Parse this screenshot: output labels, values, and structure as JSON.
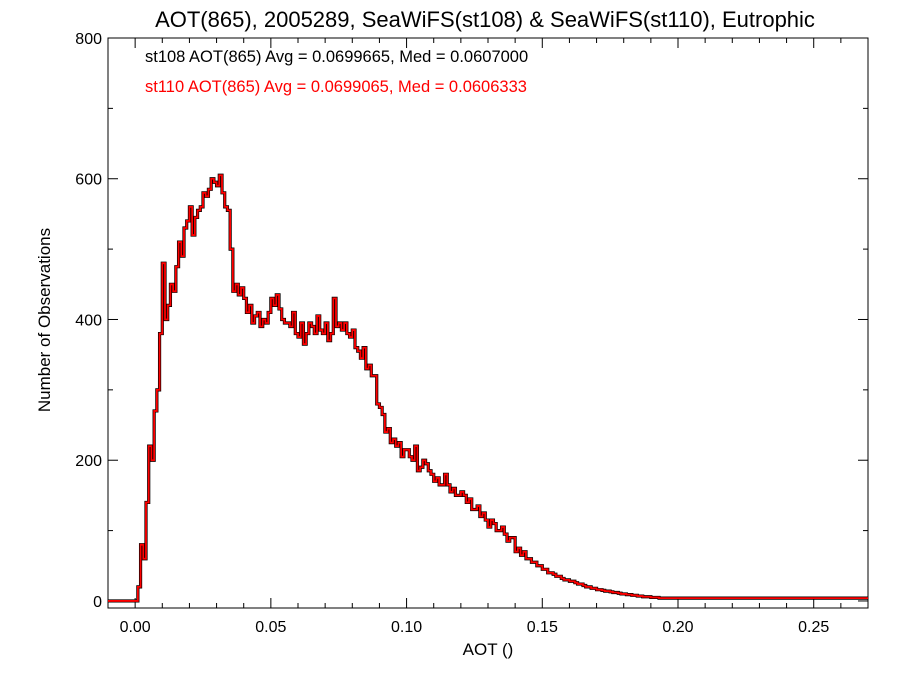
{
  "chart_data": {
    "type": "line",
    "title": "AOT(865), 2005289, SeaWiFS(st108) & SeaWiFS(st110), Eutrophic",
    "xlabel": "AOT ()",
    "ylabel": "Number of Observations",
    "xlim": [
      -0.01,
      0.27
    ],
    "ylim": [
      -10,
      800
    ],
    "x_ticks": [
      0.0,
      0.05,
      0.1,
      0.15,
      0.2,
      0.25
    ],
    "x_tick_labels": [
      "0.00",
      "0.05",
      "0.10",
      "0.15",
      "0.20",
      "0.25"
    ],
    "y_ticks": [
      0,
      200,
      400,
      600,
      800
    ],
    "y_tick_labels": [
      "0",
      "200",
      "400",
      "600",
      "800"
    ],
    "step_style": "histogram",
    "bin_width": 0.001,
    "x": [
      -0.01,
      -0.009,
      -0.008,
      -0.007,
      -0.006,
      -0.005,
      -0.004,
      -0.003,
      -0.002,
      -0.001,
      0.0,
      0.001,
      0.002,
      0.003,
      0.004,
      0.005,
      0.006,
      0.007,
      0.008,
      0.009,
      0.01,
      0.011,
      0.012,
      0.013,
      0.014,
      0.015,
      0.016,
      0.017,
      0.018,
      0.019,
      0.02,
      0.021,
      0.022,
      0.023,
      0.024,
      0.025,
      0.026,
      0.027,
      0.028,
      0.029,
      0.03,
      0.031,
      0.032,
      0.033,
      0.034,
      0.035,
      0.036,
      0.037,
      0.038,
      0.039,
      0.04,
      0.041,
      0.042,
      0.043,
      0.044,
      0.045,
      0.046,
      0.047,
      0.048,
      0.049,
      0.05,
      0.051,
      0.052,
      0.053,
      0.054,
      0.055,
      0.056,
      0.057,
      0.058,
      0.059,
      0.06,
      0.061,
      0.062,
      0.063,
      0.064,
      0.065,
      0.066,
      0.067,
      0.068,
      0.069,
      0.07,
      0.071,
      0.072,
      0.073,
      0.074,
      0.075,
      0.076,
      0.077,
      0.078,
      0.079,
      0.08,
      0.081,
      0.082,
      0.083,
      0.084,
      0.085,
      0.086,
      0.087,
      0.088,
      0.089,
      0.09,
      0.091,
      0.092,
      0.093,
      0.094,
      0.095,
      0.096,
      0.097,
      0.098,
      0.099,
      0.1,
      0.101,
      0.102,
      0.103,
      0.104,
      0.105,
      0.106,
      0.107,
      0.108,
      0.109,
      0.11,
      0.111,
      0.112,
      0.113,
      0.114,
      0.115,
      0.116,
      0.117,
      0.118,
      0.119,
      0.12,
      0.121,
      0.122,
      0.123,
      0.124,
      0.125,
      0.126,
      0.127,
      0.128,
      0.129,
      0.13,
      0.131,
      0.132,
      0.133,
      0.134,
      0.135,
      0.136,
      0.137,
      0.138,
      0.139,
      0.14,
      0.141,
      0.142,
      0.143,
      0.144,
      0.145,
      0.146,
      0.147,
      0.148,
      0.149,
      0.15,
      0.151,
      0.152,
      0.153,
      0.154,
      0.155,
      0.156,
      0.157,
      0.158,
      0.159,
      0.16,
      0.161,
      0.162,
      0.163,
      0.164,
      0.165,
      0.166,
      0.167,
      0.168,
      0.169,
      0.17,
      0.171,
      0.172,
      0.173,
      0.174,
      0.175,
      0.176,
      0.177,
      0.178,
      0.179,
      0.18,
      0.181,
      0.182,
      0.183,
      0.184,
      0.185,
      0.186,
      0.187,
      0.188,
      0.189,
      0.19,
      0.191,
      0.192,
      0.193,
      0.194,
      0.195,
      0.196,
      0.197,
      0.198,
      0.199,
      0.2,
      0.201,
      0.202,
      0.203,
      0.204,
      0.205,
      0.206,
      0.207,
      0.208,
      0.209,
      0.21,
      0.211,
      0.212,
      0.213,
      0.214,
      0.215,
      0.216,
      0.217,
      0.218,
      0.219,
      0.22,
      0.221,
      0.222,
      0.223,
      0.224,
      0.225,
      0.226,
      0.227,
      0.228,
      0.229,
      0.23,
      0.231,
      0.232,
      0.233,
      0.234,
      0.235,
      0.236,
      0.237,
      0.238,
      0.239,
      0.24,
      0.241,
      0.242,
      0.243,
      0.244,
      0.245,
      0.246,
      0.247,
      0.248,
      0.249,
      0.25,
      0.251,
      0.252,
      0.253,
      0.254,
      0.255,
      0.256,
      0.257,
      0.258,
      0.259,
      0.26,
      0.261,
      0.262,
      0.263,
      0.264,
      0.265,
      0.266,
      0.267,
      0.268,
      0.269
    ],
    "series": [
      {
        "name": "st108",
        "color": "#000000",
        "values": [
          0,
          0,
          0,
          0,
          0,
          0,
          0,
          0,
          0,
          0,
          0,
          20,
          80,
          60,
          140,
          220,
          200,
          270,
          300,
          380,
          480,
          400,
          420,
          450,
          440,
          475,
          510,
          490,
          530,
          540,
          560,
          520,
          545,
          555,
          560,
          580,
          575,
          585,
          600,
          595,
          590,
          605,
          580,
          560,
          555,
          500,
          440,
          450,
          435,
          445,
          430,
          410,
          420,
          395,
          405,
          410,
          390,
          400,
          395,
          410,
          430,
          420,
          435,
          415,
          400,
          395,
          395,
          390,
          410,
          380,
          375,
          395,
          365,
          380,
          395,
          390,
          380,
          405,
          385,
          380,
          395,
          370,
          380,
          430,
          390,
          395,
          385,
          395,
          380,
          375,
          385,
          360,
          355,
          345,
          360,
          330,
          335,
          320,
          320,
          280,
          275,
          265,
          240,
          245,
          225,
          230,
          220,
          225,
          205,
          215,
          215,
          205,
          200,
          220,
          185,
          190,
          200,
          195,
          185,
          180,
          170,
          175,
          165,
          165,
          180,
          165,
          155,
          160,
          150,
          150,
          155,
          150,
          140,
          145,
          130,
          130,
          135,
          120,
          125,
          115,
          105,
          115,
          110,
          100,
          100,
          105,
          95,
          85,
          90,
          90,
          70,
          75,
          65,
          70,
          60,
          60,
          55,
          55,
          50,
          50,
          45,
          45,
          40,
          40,
          38,
          35,
          35,
          32,
          30,
          30,
          28,
          28,
          26,
          24,
          24,
          22,
          20,
          20,
          18,
          18,
          16,
          16,
          15,
          14,
          14,
          13,
          12,
          12,
          11,
          10,
          10,
          9,
          9,
          8,
          8,
          7,
          7,
          6,
          6,
          6,
          5,
          5,
          5,
          4,
          4,
          4,
          4,
          4,
          4,
          4,
          4,
          4,
          4,
          4,
          4,
          4,
          4,
          4,
          4,
          4,
          4,
          4,
          4,
          4,
          4,
          4,
          4,
          4,
          4,
          4,
          4,
          4,
          4,
          4,
          4,
          4,
          4,
          4,
          4,
          4,
          4,
          4,
          4,
          4,
          4,
          4,
          4,
          4,
          4,
          4,
          4,
          4,
          4,
          4,
          4,
          4,
          4,
          4,
          4,
          4,
          4,
          4,
          4,
          4,
          4,
          4,
          4,
          4,
          4,
          4,
          4,
          4,
          4,
          4,
          4,
          4,
          4,
          4,
          4,
          4
        ]
      },
      {
        "name": "st110",
        "color": "#ff0000",
        "values": [
          0,
          0,
          0,
          0,
          0,
          0,
          0,
          0,
          0,
          0,
          0,
          20,
          80,
          60,
          140,
          220,
          200,
          270,
          300,
          380,
          480,
          400,
          420,
          450,
          440,
          475,
          510,
          490,
          530,
          540,
          560,
          520,
          545,
          555,
          560,
          580,
          575,
          585,
          600,
          595,
          590,
          605,
          580,
          560,
          555,
          500,
          440,
          450,
          435,
          445,
          430,
          410,
          420,
          395,
          405,
          410,
          390,
          400,
          395,
          410,
          430,
          420,
          435,
          415,
          400,
          395,
          395,
          390,
          410,
          380,
          375,
          395,
          365,
          380,
          395,
          390,
          380,
          405,
          385,
          380,
          395,
          370,
          380,
          430,
          390,
          395,
          385,
          395,
          380,
          375,
          385,
          360,
          355,
          345,
          360,
          330,
          335,
          320,
          320,
          280,
          275,
          265,
          240,
          245,
          225,
          230,
          220,
          225,
          205,
          215,
          215,
          205,
          200,
          220,
          185,
          190,
          200,
          195,
          185,
          180,
          170,
          175,
          165,
          165,
          180,
          165,
          155,
          160,
          150,
          150,
          155,
          150,
          140,
          145,
          130,
          130,
          135,
          120,
          125,
          115,
          105,
          115,
          110,
          100,
          100,
          105,
          95,
          85,
          90,
          90,
          70,
          75,
          65,
          70,
          60,
          60,
          55,
          55,
          50,
          50,
          45,
          45,
          40,
          40,
          38,
          35,
          35,
          32,
          30,
          30,
          28,
          28,
          26,
          24,
          24,
          22,
          20,
          20,
          18,
          18,
          16,
          16,
          15,
          14,
          14,
          13,
          12,
          12,
          11,
          10,
          10,
          9,
          9,
          8,
          8,
          7,
          7,
          6,
          6,
          6,
          5,
          5,
          5,
          4,
          4,
          4,
          4,
          4,
          4,
          4,
          4,
          4,
          4,
          4,
          4,
          4,
          4,
          4,
          4,
          4,
          4,
          4,
          4,
          4,
          4,
          4,
          4,
          4,
          4,
          4,
          4,
          4,
          4,
          4,
          4,
          4,
          4,
          4,
          4,
          4,
          4,
          4,
          4,
          4,
          4,
          4,
          4,
          4,
          4,
          4,
          4,
          4,
          4,
          4,
          4,
          4,
          4,
          4,
          4,
          4,
          4,
          4,
          4,
          4,
          4,
          4,
          4,
          4,
          4,
          4,
          4,
          4,
          4,
          4,
          4,
          4,
          4,
          4,
          4,
          4
        ]
      }
    ],
    "annotations": [
      {
        "text": "st108 AOT(865) Avg = 0.0699665, Med = 0.0607000",
        "color": "#000000"
      },
      {
        "text": "st110 AOT(865) Avg = 0.0699065, Med = 0.0606333",
        "color": "#ff0000"
      }
    ],
    "grid": false,
    "legend": "top-left"
  }
}
